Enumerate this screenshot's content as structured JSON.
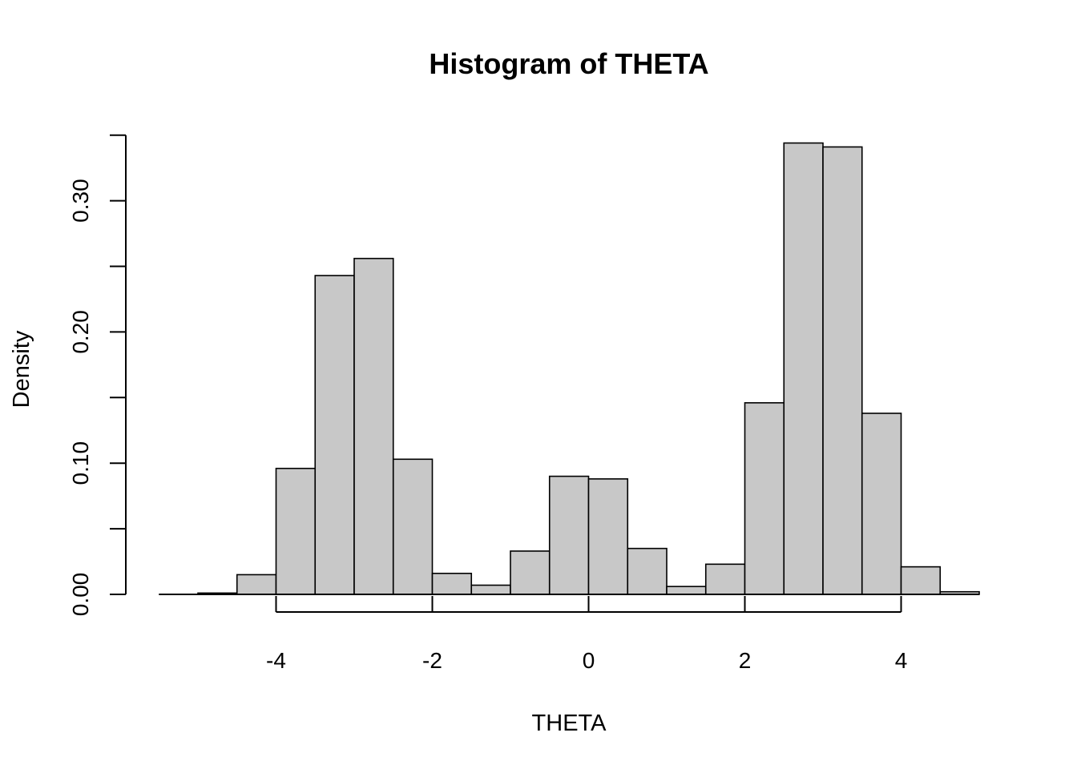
{
  "chart_data": {
    "type": "bar",
    "title": "Histogram of THETA",
    "xlabel": "THETA",
    "ylabel": "Density",
    "bin_edges": [
      -5.0,
      -4.5,
      -4.0,
      -3.5,
      -3.0,
      -2.5,
      -2.0,
      -1.5,
      -1.0,
      -0.5,
      0.0,
      0.5,
      1.0,
      1.5,
      2.0,
      2.5,
      3.0,
      3.5,
      4.0,
      4.5,
      5.0
    ],
    "values": [
      0.001,
      0.015,
      0.096,
      0.243,
      0.256,
      0.103,
      0.016,
      0.007,
      0.033,
      0.09,
      0.088,
      0.035,
      0.006,
      0.023,
      0.146,
      0.344,
      0.341,
      0.138,
      0.021,
      0.002
    ],
    "x_ticks": [
      -4,
      -2,
      0,
      2,
      4
    ],
    "x_tick_labels": [
      "-4",
      "-2",
      "0",
      "2",
      "4"
    ],
    "y_ticks": [
      0,
      0.05,
      0.1,
      0.15,
      0.2,
      0.25,
      0.3,
      0.35
    ],
    "y_tick_labels": [
      "0.00",
      "",
      "0.10",
      "",
      "0.20",
      "",
      "0.30",
      ""
    ],
    "xlim": [
      -5.5,
      5
    ],
    "ylim": [
      0,
      0.35
    ],
    "grid": false,
    "bar_color": "#c8c8c8",
    "edge_color": "#000000"
  }
}
